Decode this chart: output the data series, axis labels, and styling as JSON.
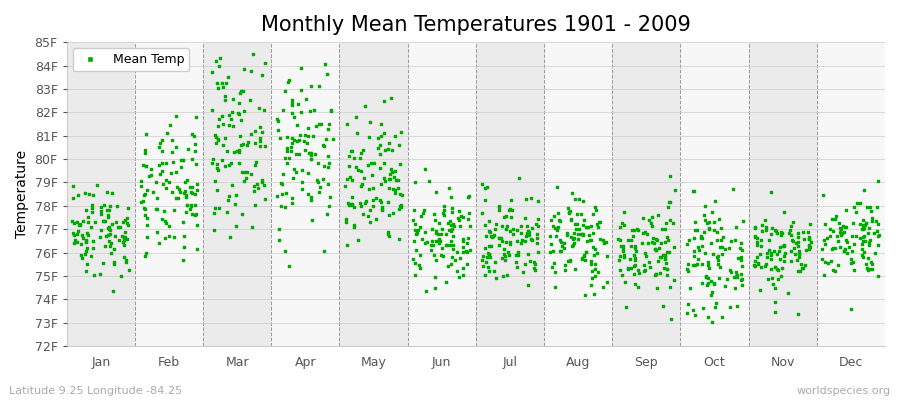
{
  "title": "Monthly Mean Temperatures 1901 - 2009",
  "ylabel": "Temperature",
  "xlabel_bottom_left": "Latitude 9.25 Longitude -84.25",
  "xlabel_bottom_right": "worldspecies.org",
  "legend_label": "Mean Temp",
  "dot_color": "#00aa00",
  "dot_size": 3,
  "ylim_min": 72,
  "ylim_max": 85,
  "yticks": [
    72,
    73,
    74,
    75,
    76,
    77,
    78,
    79,
    80,
    81,
    82,
    83,
    84,
    85
  ],
  "ytick_labels": [
    "72F",
    "73F",
    "74F",
    "75F",
    "76F",
    "77F",
    "78F",
    "79F",
    "80F",
    "81F",
    "82F",
    "83F",
    "84F",
    "85F"
  ],
  "month_labels": [
    "Jan",
    "Feb",
    "Mar",
    "Apr",
    "May",
    "Jun",
    "Jul",
    "Aug",
    "Sep",
    "Oct",
    "Nov",
    "Dec"
  ],
  "month_positions": [
    0,
    1,
    2,
    3,
    4,
    5,
    6,
    7,
    8,
    9,
    10,
    11
  ],
  "vline_positions": [
    0.5,
    1.5,
    2.5,
    3.5,
    4.5,
    5.5,
    6.5,
    7.5,
    8.5,
    9.5,
    10.5
  ],
  "band_color_odd": "#ebebeb",
  "band_color_even": "#f7f7f7",
  "title_fontsize": 15,
  "label_fontsize": 10,
  "tick_fontsize": 9,
  "monthly_means": [
    77.0,
    78.5,
    80.8,
    80.5,
    78.8,
    76.6,
    76.6,
    76.5,
    76.1,
    75.7,
    76.1,
    76.7
  ],
  "monthly_stds": [
    1.0,
    1.4,
    1.8,
    1.9,
    1.5,
    1.0,
    1.0,
    1.0,
    1.0,
    1.1,
    0.9,
    0.9
  ],
  "n_years": 109
}
